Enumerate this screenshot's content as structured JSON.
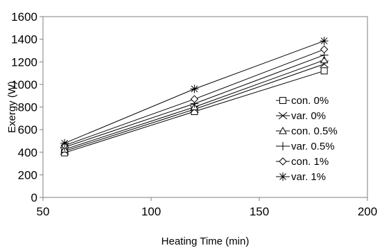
{
  "chart_data": {
    "type": "line",
    "xlabel": "Heating Time (min)",
    "ylabel": "Exergy (W)",
    "xlim": [
      50,
      200
    ],
    "ylim": [
      0,
      1600
    ],
    "xticks": [
      50,
      100,
      150,
      200
    ],
    "yticks": [
      0,
      200,
      400,
      600,
      800,
      1000,
      1200,
      1400,
      1600
    ],
    "grid": false,
    "legend": "right",
    "x": [
      60,
      120,
      180
    ],
    "series": [
      {
        "name": "con. 0%",
        "marker": "square",
        "values": [
          395,
          760,
          1120
        ]
      },
      {
        "name": "var. 0%",
        "marker": "x",
        "values": [
          410,
          780,
          1180
        ]
      },
      {
        "name": "con. 0.5%",
        "marker": "triangle",
        "values": [
          425,
          800,
          1215
        ]
      },
      {
        "name": "var. 0.5%",
        "marker": "plus",
        "values": [
          445,
          830,
          1260
        ]
      },
      {
        "name": "con. 1%",
        "marker": "diamond",
        "values": [
          460,
          870,
          1310
        ]
      },
      {
        "name": "var. 1%",
        "marker": "star",
        "values": [
          480,
          960,
          1385
        ]
      }
    ]
  }
}
